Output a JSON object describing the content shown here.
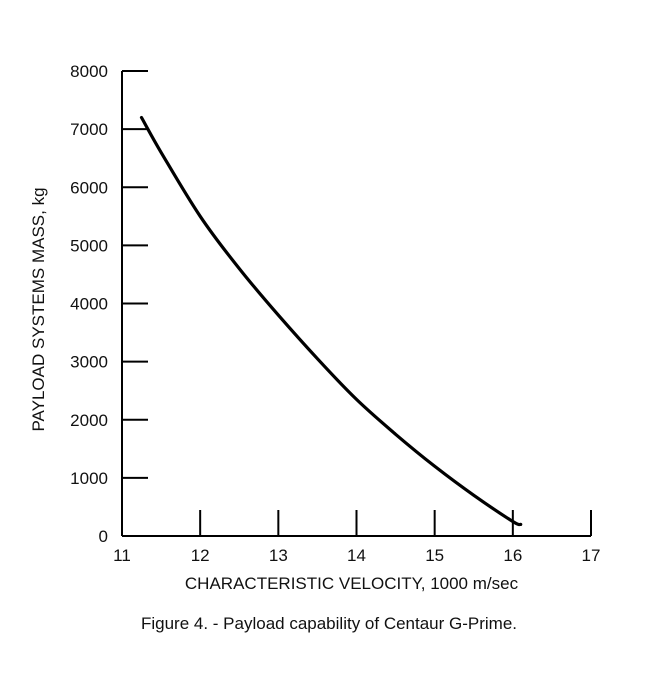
{
  "chart_data": {
    "type": "line",
    "title": "",
    "xlabel": "CHARACTERISTIC VELOCITY, 1000 m/sec",
    "ylabel": "PAYLOAD SYSTEMS MASS, kg",
    "xlim": [
      11,
      17
    ],
    "ylim": [
      0,
      8000
    ],
    "x_ticks": [
      11,
      12,
      13,
      14,
      15,
      16,
      17
    ],
    "y_ticks": [
      0,
      1000,
      2000,
      3000,
      4000,
      5000,
      6000,
      7000,
      8000
    ],
    "grid": false,
    "series": [
      {
        "x": [
          11.25,
          11.5,
          12.0,
          12.5,
          13.0,
          13.5,
          14.0,
          14.5,
          15.0,
          15.5,
          16.0,
          16.1
        ],
        "y": [
          7200,
          6600,
          5500,
          4600,
          3800,
          3050,
          2350,
          1750,
          1200,
          700,
          250,
          200
        ]
      }
    ],
    "color": "#000000"
  },
  "caption": "Figure 4. - Payload capability of Centaur G-Prime."
}
